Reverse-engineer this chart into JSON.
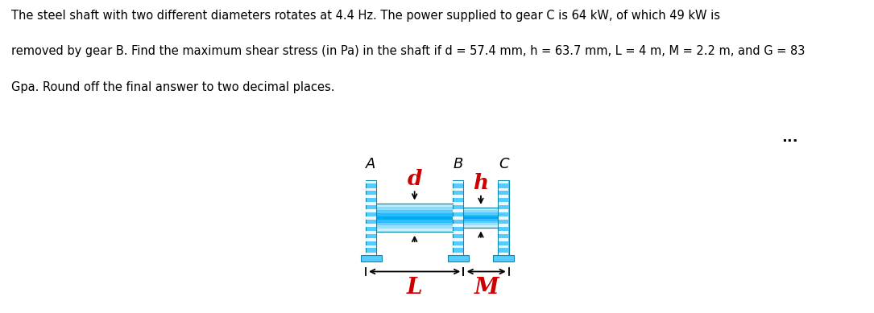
{
  "title_text_line1": "The steel shaft with two different diameters rotates at 4.4 Hz. The power supplied to gear C is 64 kW, of which 49 kW is",
  "title_text_line2": "removed by gear B. Find the maximum shear stress (in Pa) in the shaft if d = 57.4 mm, h = 63.7 mm, L = 4 m, M = 2.2 m, and G = 83",
  "title_text_line3": "Gpa. Round off the final answer to two decimal places.",
  "label_A": "A",
  "label_B": "B",
  "label_C": "C",
  "label_d": "d",
  "label_h": "h",
  "label_L": "L",
  "label_M": "M",
  "dots": "...",
  "text_color": "#000000",
  "red_color": "#cc0000",
  "wall_color": "#55ccff",
  "wall_stripe_color": "#ffffff",
  "shaft_colors_large": [
    "#c8f0ff",
    "#99e0ff",
    "#66cfff",
    "#33bbff",
    "#00aaee",
    "#22bbff",
    "#55ccff",
    "#88ddff",
    "#bbeeff"
  ],
  "shaft_colors_small": [
    "#c8f0ff",
    "#99e0ff",
    "#66cfff",
    "#33bbff",
    "#00aaee",
    "#22bbff",
    "#55ccff",
    "#88ddff",
    "#bbeeff"
  ],
  "base_color": "#55ccff",
  "bg_color": "#f0f0f0",
  "wall_edge_color": "#1188aa",
  "title_fontsize": 10.5,
  "label_fontsize": 13,
  "dim_label_fontsize": 20
}
